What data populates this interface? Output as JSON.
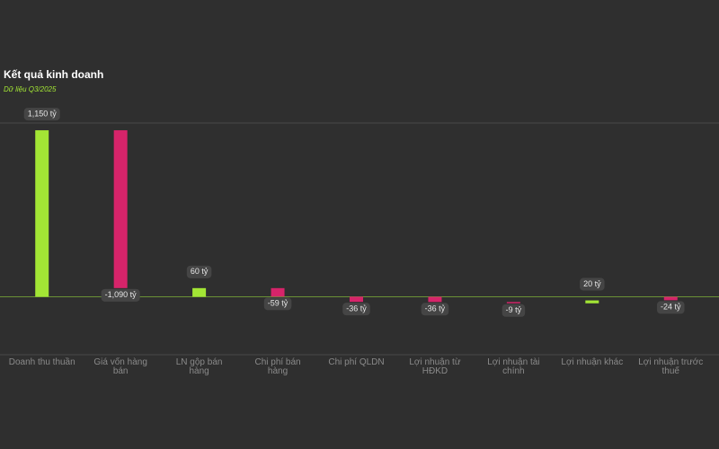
{
  "chart_data": {
    "type": "waterfall",
    "title": "Kết quả kinh doanh",
    "subtitle": "Dữ liệu Q3/2025",
    "categories": [
      "Doanh thu thuần",
      "Giá vốn hàng bán",
      "LN gộp bán hàng",
      "Chi phí bán hàng",
      "Chi phí QLDN",
      "Lợi nhuận từ HĐKD",
      "Lợi nhuận tài chính",
      "Lợi nhuận khác",
      "Lợi nhuận trước thuế"
    ],
    "values": [
      1150,
      -1090,
      60,
      -59,
      -36,
      -36,
      -9,
      20,
      -24
    ],
    "value_labels": [
      "1,150 tỷ",
      "-1,090 tỷ",
      "60 tỷ",
      "-59 tỷ",
      "-36 tỷ",
      "-36 tỷ",
      "-9 tỷ",
      "20 tỷ",
      "-24 tỷ"
    ],
    "measure": [
      "total",
      "relative",
      "total",
      "relative",
      "relative",
      "total",
      "relative",
      "relative",
      "total"
    ],
    "positive_color": "#a3e635",
    "negative_color": "#d6246a",
    "ylim": [
      -400,
      1200
    ]
  }
}
